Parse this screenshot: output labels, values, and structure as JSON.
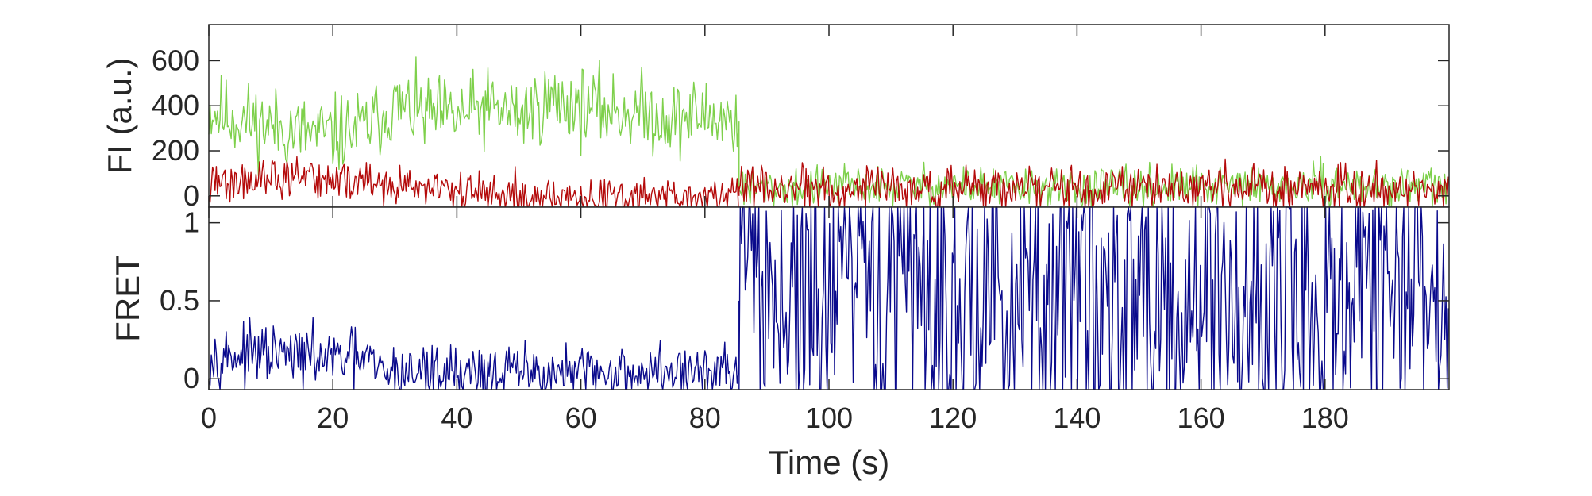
{
  "chart_data": [
    {
      "type": "line",
      "ylabel": "FI (a.u.)",
      "xlabel": "",
      "xlim": [
        0,
        200
      ],
      "ylim": [
        -50,
        760
      ],
      "yticks": [
        0,
        200,
        400,
        600
      ],
      "grid": false,
      "series_segments": [
        {
          "color": "#7ED04B",
          "segments": [
            {
              "x": [
                0,
                5,
                10,
                15,
                20,
                25,
                30,
                35,
                40,
                45,
                50,
                55,
                60,
                65,
                70,
                75,
                80,
                85.5
              ],
              "y": [
                380,
                340,
                310,
                280,
                270,
                300,
                400,
                360,
                350,
                390,
                360,
                420,
                400,
                380,
                370,
                340,
                360,
                330
              ],
              "noise": 85
            },
            {
              "x": [
                85.5,
                100,
                120,
                140,
                160,
                180,
                200
              ],
              "y": [
                30,
                40,
                45,
                30,
                40,
                45,
                40
              ],
              "noise": 45
            }
          ]
        },
        {
          "color": "#B40A0A",
          "segments": [
            {
              "x": [
                0,
                10,
                15,
                20,
                25,
                30,
                40,
                50,
                60,
                70,
                80,
                85.5
              ],
              "y": [
                50,
                70,
                80,
                70,
                60,
                40,
                20,
                0,
                -10,
                -10,
                0,
                0
              ],
              "noise": 45
            },
            {
              "x": [
                85.5,
                100,
                120,
                140,
                160,
                180,
                200
              ],
              "y": [
                40,
                30,
                35,
                30,
                35,
                40,
                35
              ],
              "noise": 50
            }
          ]
        }
      ]
    },
    {
      "type": "line",
      "ylabel": "FRET",
      "xlabel": "Time (s)",
      "xlim": [
        0,
        200
      ],
      "ylim": [
        -0.07,
        1.1
      ],
      "xticks": [
        0,
        20,
        40,
        60,
        80,
        100,
        120,
        140,
        160,
        180
      ],
      "yticks": [
        0,
        0.5,
        1
      ],
      "grid": false,
      "series_segments": [
        {
          "color": "#0A0A8C",
          "segments": [
            {
              "x": [
                0,
                10,
                20,
                26,
                27,
                40,
                50,
                60,
                70,
                80,
                85.5
              ],
              "y": [
                0.15,
                0.15,
                0.13,
                0.12,
                0.04,
                0.05,
                0.04,
                0.03,
                0.04,
                0.04,
                0.04
              ],
              "noise": 0.09
            },
            {
              "x": [
                85.5,
                200
              ],
              "y": [
                0.5,
                0.5
              ],
              "noise": 0.6
            }
          ]
        }
      ]
    }
  ]
}
